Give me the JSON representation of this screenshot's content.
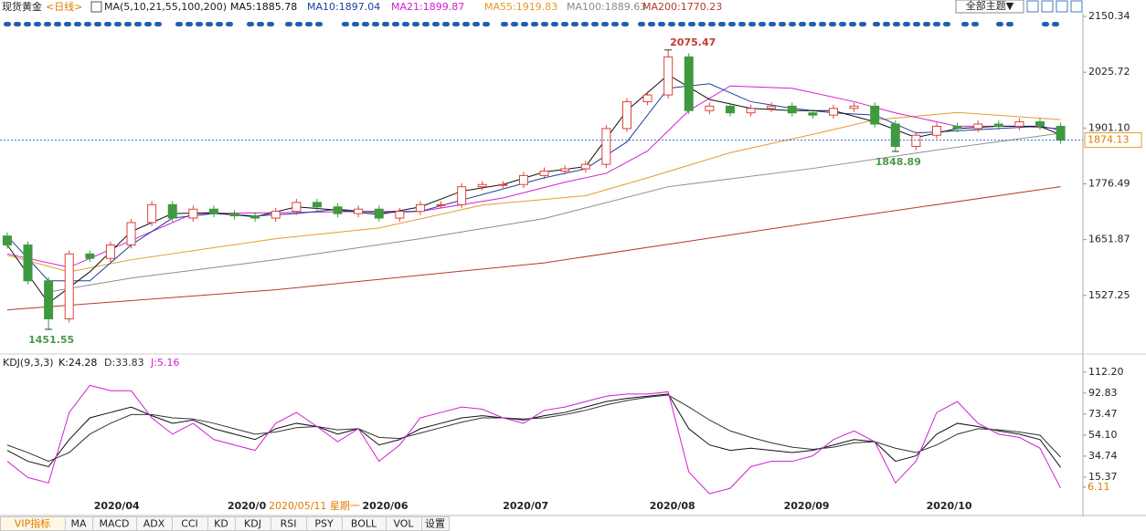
{
  "header": {
    "instrument": "现货黄金",
    "period": "<日线>",
    "theme_button": "全部主题▼"
  },
  "chart_data": [
    {
      "type": "candlestick",
      "indicator": "MA(5,10,21,55,100,200)",
      "categories": [
        null,
        null,
        null,
        null,
        null,
        null,
        null,
        null,
        null,
        null,
        null,
        null,
        null,
        null,
        null,
        null,
        null,
        null,
        null,
        null,
        null,
        null,
        null,
        null,
        null,
        null,
        null,
        null,
        null,
        null,
        null,
        null,
        null,
        null,
        null,
        null,
        null,
        null,
        null,
        null,
        null,
        null,
        null,
        null,
        null,
        null,
        null,
        null,
        null,
        null,
        null,
        null
      ],
      "open": [
        1660,
        1640,
        1560,
        1475,
        1620,
        1610,
        1640,
        1690,
        1730,
        1700,
        1720,
        1710,
        1705,
        1700,
        1715,
        1735,
        1725,
        1710,
        1720,
        1700,
        1715,
        1730,
        1730,
        1770,
        1775,
        1775,
        1795,
        1805,
        1810,
        1820,
        1900,
        1960,
        1975,
        2060,
        1940,
        1950,
        1935,
        1945,
        1950,
        1935,
        1930,
        1945,
        1950,
        1910,
        1860,
        1885,
        1905,
        1900,
        1910,
        1905,
        1915,
        1905
      ],
      "high": [
        1668,
        1648,
        1568,
        1628,
        1628,
        1648,
        1698,
        1738,
        1738,
        1728,
        1728,
        1718,
        1713,
        1723,
        1743,
        1743,
        1733,
        1728,
        1728,
        1723,
        1738,
        1738,
        1778,
        1783,
        1783,
        1803,
        1813,
        1818,
        1828,
        1908,
        1968,
        1983,
        2075.47,
        2068,
        1958,
        1958,
        1953,
        1958,
        1958,
        1943,
        1953,
        1958,
        1958,
        1918,
        1893,
        1913,
        1913,
        1918,
        1918,
        1923,
        1923,
        1913
      ],
      "low": [
        1632,
        1552,
        1451.55,
        1467,
        1602,
        1602,
        1632,
        1682,
        1692,
        1692,
        1702,
        1697,
        1692,
        1692,
        1707,
        1717,
        1702,
        1702,
        1692,
        1692,
        1707,
        1722,
        1722,
        1762,
        1767,
        1767,
        1787,
        1797,
        1802,
        1812,
        1892,
        1952,
        1967,
        1932,
        1932,
        1927,
        1927,
        1937,
        1927,
        1922,
        1922,
        1937,
        1902,
        1848.89,
        1852,
        1877,
        1892,
        1892,
        1897,
        1897,
        1897,
        1866
      ],
      "close": [
        1640,
        1560,
        1475,
        1620,
        1610,
        1640,
        1690,
        1730,
        1700,
        1720,
        1710,
        1705,
        1700,
        1715,
        1735,
        1725,
        1710,
        1720,
        1700,
        1715,
        1730,
        1730,
        1770,
        1775,
        1775,
        1795,
        1805,
        1810,
        1820,
        1900,
        1960,
        1975,
        2060,
        1940,
        1950,
        1935,
        1945,
        1950,
        1935,
        1930,
        1945,
        1950,
        1910,
        1860,
        1885,
        1905,
        1900,
        1910,
        1905,
        1915,
        1905,
        1874.13
      ],
      "up_color": "#e0413a",
      "down_color": "#3f9a3f",
      "series": [
        {
          "name": "MA5:1885.78",
          "color": "#111111",
          "x": [
            0,
            2,
            4,
            6,
            8,
            10,
            12,
            14,
            16,
            18,
            20,
            22,
            24,
            26,
            28,
            30,
            32,
            34,
            36,
            38,
            40,
            42,
            44,
            46,
            48,
            50,
            51
          ],
          "values": [
            1640,
            1510,
            1580,
            1670,
            1710,
            1712,
            1703,
            1725,
            1718,
            1708,
            1725,
            1760,
            1775,
            1803,
            1815,
            1940,
            2020,
            1965,
            1945,
            1940,
            1940,
            1915,
            1880,
            1900,
            1905,
            1905,
            1885.78
          ]
        },
        {
          "name": "MA10:1897.04",
          "color": "#1d3f9e",
          "x": [
            0,
            2,
            4,
            6,
            8,
            10,
            12,
            14,
            16,
            18,
            20,
            22,
            24,
            26,
            28,
            30,
            32,
            34,
            36,
            38,
            40,
            42,
            44,
            46,
            48,
            50,
            51
          ],
          "values": [
            1660,
            1560,
            1560,
            1640,
            1700,
            1710,
            1705,
            1710,
            1720,
            1712,
            1715,
            1740,
            1765,
            1790,
            1810,
            1870,
            1990,
            2000,
            1960,
            1945,
            1935,
            1930,
            1890,
            1895,
            1900,
            1905,
            1897.04
          ]
        },
        {
          "name": "MA21:1899.87",
          "color": "#d21fd2",
          "x": [
            0,
            3,
            6,
            9,
            13,
            17,
            20,
            24,
            27,
            29,
            31,
            33,
            35,
            38,
            41,
            43,
            46,
            49,
            51
          ],
          "values": [
            1620,
            1590,
            1650,
            1710,
            1712,
            1715,
            1715,
            1745,
            1780,
            1800,
            1850,
            1940,
            1995,
            1990,
            1960,
            1935,
            1905,
            1905,
            1899.87
          ]
        },
        {
          "name": "MA55:1919.83",
          "color": "#e69a2e",
          "x": [
            0,
            3,
            6,
            13,
            18,
            23,
            28,
            31,
            35,
            39,
            42,
            46,
            51
          ],
          "values": [
            1617,
            1580,
            1607,
            1654,
            1678,
            1729,
            1750,
            1790,
            1846,
            1887,
            1919,
            1936,
            1919.83
          ]
        },
        {
          "name": "MA100:1889.63",
          "color": "#8c8c8c",
          "x": [
            2,
            6,
            13,
            20,
            26,
            32,
            39,
            45,
            51
          ],
          "values": [
            1535,
            1566,
            1607,
            1654,
            1699,
            1770,
            1811,
            1852,
            1889.63
          ]
        },
        {
          "name": "MA200:1770.23",
          "color": "#b5382c",
          "x": [
            0,
            13,
            26,
            39,
            51
          ],
          "values": [
            1495,
            1540,
            1600,
            1690,
            1770.23
          ]
        }
      ],
      "annotations": [
        {
          "text": "2075.47",
          "value": 2075.47
        },
        {
          "text": "1451.55",
          "value": 1451.55
        },
        {
          "text": "1848.89",
          "value": 1848.89
        }
      ],
      "last_price": {
        "value": 1874.13,
        "label": "1874.13"
      },
      "xlim": [
        -0.35,
        52.08
      ],
      "ylim": [
        1402.6,
        2162.6
      ],
      "yticks": [
        2150.34,
        2025.72,
        {
          "value": 1901.1,
          "label": "1901.10"
        },
        1776.49,
        1651.87,
        1527.25
      ],
      "grid": false
    },
    {
      "type": "line",
      "title": "KDJ(9,3,3)",
      "categories": [
        null,
        null,
        null,
        null,
        null,
        null,
        null,
        null,
        null,
        null,
        null,
        null,
        null,
        null,
        null,
        null,
        null,
        null,
        null,
        null,
        null,
        null,
        null,
        null,
        null,
        null,
        null,
        null,
        null,
        null,
        null,
        null,
        null,
        null,
        null,
        null,
        null,
        null,
        null,
        null,
        null,
        null,
        null,
        null,
        null,
        null,
        null,
        null,
        null,
        null,
        null,
        null
      ],
      "series": [
        {
          "name": "K:24.28",
          "color": "#111111",
          "values": [
            40,
            30,
            25,
            50,
            70,
            75,
            80,
            72,
            65,
            68,
            60,
            55,
            50,
            60,
            65,
            62,
            55,
            60,
            45,
            50,
            60,
            65,
            70,
            72,
            70,
            68,
            72,
            75,
            80,
            85,
            88,
            90,
            92,
            60,
            45,
            40,
            42,
            40,
            38,
            40,
            45,
            50,
            48,
            30,
            35,
            55,
            65,
            62,
            58,
            55,
            50,
            24.28
          ]
        },
        {
          "name": "D:33.83",
          "color": "#333333",
          "values": [
            45,
            38,
            30,
            38,
            55,
            65,
            73,
            73,
            70,
            69,
            65,
            60,
            55,
            57,
            61,
            62,
            59,
            60,
            52,
            51,
            56,
            61,
            66,
            70,
            70,
            69,
            70,
            73,
            77,
            82,
            86,
            89,
            91,
            80,
            68,
            58,
            52,
            47,
            43,
            41,
            43,
            47,
            48,
            42,
            38,
            45,
            55,
            60,
            59,
            57,
            54,
            33.83
          ]
        },
        {
          "name": "J:5.16",
          "color": "#d21fd2",
          "values": [
            30,
            15,
            10,
            75,
            100,
            95,
            95,
            70,
            55,
            65,
            50,
            45,
            40,
            65,
            75,
            62,
            48,
            60,
            30,
            45,
            70,
            75,
            80,
            78,
            70,
            65,
            77,
            80,
            85,
            90,
            92,
            92,
            94,
            20,
            0,
            5,
            25,
            30,
            30,
            35,
            50,
            58,
            48,
            10,
            30,
            75,
            85,
            65,
            55,
            52,
            42,
            5.16
          ]
        }
      ],
      "annotations": [
        {
          "text": "6.11",
          "value": 6.11
        }
      ],
      "xlim": [
        -0.35,
        52.08
      ],
      "ylim": [
        -11.6,
        123
      ],
      "yticks": [
        {
          "value": 112.2,
          "label": "112.20"
        },
        92.83,
        73.47,
        {
          "value": 54.1,
          "label": "54.10"
        },
        34.74,
        15.37
      ],
      "xticks": [
        {
          "value": 5.3,
          "label": "2020/04"
        },
        {
          "value": 11.6,
          "label": "2020/0"
        },
        {
          "value": 18.3,
          "label": "2020/06"
        },
        {
          "value": 25.1,
          "label": "2020/07"
        },
        {
          "value": 32.2,
          "label": "2020/08"
        },
        {
          "value": 38.7,
          "label": "2020/09"
        },
        {
          "value": 45.6,
          "label": "2020/10"
        }
      ],
      "grid": false
    }
  ],
  "crosshair_label": "2020/05/11 星期一",
  "toolbar": {
    "tabs": [
      "VIP指标",
      "MA",
      "MACD",
      "ADX",
      "CCI",
      "KD",
      "KDJ",
      "RSI",
      "PSY",
      "BOLL",
      "VOL",
      "设置"
    ]
  }
}
